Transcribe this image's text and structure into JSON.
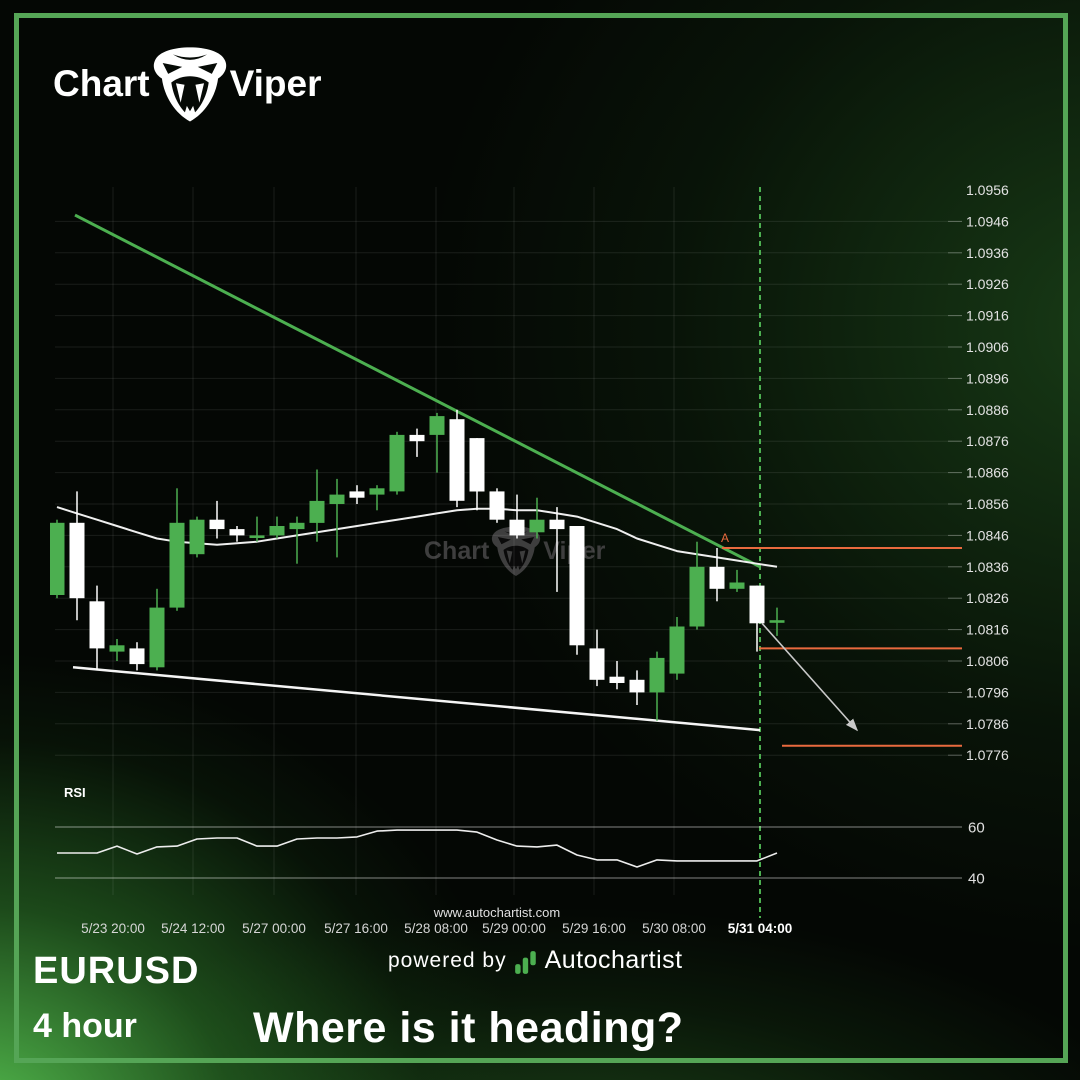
{
  "logo": {
    "left": "Chart",
    "right": "Viper"
  },
  "watermark": {
    "left": "Chart",
    "right": "Viper"
  },
  "symbol": "EURUSD",
  "timeframe": "4 hour",
  "headline": "Where is it heading?",
  "powered_by": {
    "prefix": "powered by",
    "brand": "Autochartist"
  },
  "website": "www.autochartist.com",
  "colors": {
    "accent_green": "#4caf50",
    "frame_green": "#55a556",
    "bear_white": "#ffffff",
    "level_orange": "#e96a3e",
    "arrow_gray": "#c9c9c9",
    "grid": "rgba(255,255,255,0.09)",
    "axis_text": "#e2e2e2"
  },
  "chart_data": {
    "type": "candlestick",
    "title": "EURUSD 4 hour with descending triangle breakout forecast",
    "symbol": "EURUSD",
    "interval": "4 hour",
    "grid": true,
    "price_axis": {
      "min": 1.0776,
      "max": 1.0956,
      "step": 0.001,
      "labels": [
        "1.0956",
        "1.0946",
        "1.0936",
        "1.0926",
        "1.0916",
        "1.0906",
        "1.0896",
        "1.0886",
        "1.0876",
        "1.0866",
        "1.0856",
        "1.0846",
        "1.0836",
        "1.0826",
        "1.0816",
        "1.0806",
        "1.0796",
        "1.0786",
        "1.0776"
      ]
    },
    "x_axis": {
      "labels": [
        {
          "text": "5/23 20:00",
          "index": 2.8,
          "bold": false
        },
        {
          "text": "5/24 12:00",
          "index": 6.8,
          "bold": false
        },
        {
          "text": "5/27 00:00",
          "index": 10.85,
          "bold": false
        },
        {
          "text": "5/27 16:00",
          "index": 14.95,
          "bold": false
        },
        {
          "text": "5/28 08:00",
          "index": 18.95,
          "bold": false
        },
        {
          "text": "5/29 00:00",
          "index": 22.85,
          "bold": false
        },
        {
          "text": "5/29 16:00",
          "index": 26.85,
          "bold": false
        },
        {
          "text": "5/30 08:00",
          "index": 30.85,
          "bold": false
        },
        {
          "text": "5/31 04:00",
          "index": 35.15,
          "bold": true
        }
      ]
    },
    "candles": [
      [
        1.0827,
        1.0851,
        1.0826,
        1.085
      ],
      [
        1.085,
        1.086,
        1.0819,
        1.0826
      ],
      [
        1.0825,
        1.083,
        1.0803,
        1.081
      ],
      [
        1.0809,
        1.0813,
        1.0806,
        1.0811
      ],
      [
        1.081,
        1.0812,
        1.0803,
        1.0805
      ],
      [
        1.0804,
        1.0829,
        1.0803,
        1.0823
      ],
      [
        1.0823,
        1.0861,
        1.0822,
        1.085
      ],
      [
        1.084,
        1.0852,
        1.0839,
        1.0851
      ],
      [
        1.0851,
        1.0857,
        1.0845,
        1.0848
      ],
      [
        1.0848,
        1.0849,
        1.0844,
        1.0846
      ],
      [
        1.0846,
        1.0852,
        1.0844,
        1.0846
      ],
      [
        1.0846,
        1.0852,
        1.0845,
        1.0849
      ],
      [
        1.0848,
        1.0852,
        1.0837,
        1.085
      ],
      [
        1.085,
        1.0867,
        1.0844,
        1.0857
      ],
      [
        1.0856,
        1.0864,
        1.0839,
        1.0859
      ],
      [
        1.086,
        1.0862,
        1.0856,
        1.0858
      ],
      [
        1.0859,
        1.0862,
        1.0854,
        1.0861
      ],
      [
        1.086,
        1.0879,
        1.0859,
        1.0878
      ],
      [
        1.0878,
        1.088,
        1.0871,
        1.0876
      ],
      [
        1.0878,
        1.0885,
        1.0866,
        1.0884
      ],
      [
        1.0883,
        1.0886,
        1.0855,
        1.0857
      ],
      [
        1.0877,
        1.0877,
        1.0854,
        1.086
      ],
      [
        1.086,
        1.0861,
        1.085,
        1.0851
      ],
      [
        1.0851,
        1.0859,
        1.0845,
        1.0846
      ],
      [
        1.0847,
        1.0858,
        1.0845,
        1.0851
      ],
      [
        1.0851,
        1.0855,
        1.0828,
        1.0848
      ],
      [
        1.0849,
        1.0849,
        1.0808,
        1.0811
      ],
      [
        1.081,
        1.0816,
        1.0798,
        1.08
      ],
      [
        1.0801,
        1.0806,
        1.0797,
        1.0799
      ],
      [
        1.08,
        1.0803,
        1.0792,
        1.0796
      ],
      [
        1.0796,
        1.0809,
        1.0787,
        1.0807
      ],
      [
        1.0802,
        1.082,
        1.08,
        1.0817
      ],
      [
        1.0817,
        1.0844,
        1.0816,
        1.0836
      ],
      [
        1.0836,
        1.0842,
        1.0825,
        1.0829
      ],
      [
        1.0829,
        1.0835,
        1.0828,
        1.0831
      ],
      [
        1.083,
        1.083,
        1.0809,
        1.0818
      ],
      [
        1.0819,
        1.0823,
        1.0814,
        1.0819
      ]
    ],
    "moving_average": [
      1.0855,
      1.0853,
      1.0851,
      1.0849,
      1.0847,
      1.0845,
      1.0844,
      1.08435,
      1.0843,
      1.08435,
      1.0844,
      1.0845,
      1.0846,
      1.0847,
      1.0848,
      1.0849,
      1.085,
      1.0851,
      1.0852,
      1.0853,
      1.0854,
      1.08545,
      1.08545,
      1.0854,
      1.0854,
      1.0853,
      1.0852,
      1.085,
      1.0848,
      1.0845,
      1.0843,
      1.0841,
      1.084,
      1.0839,
      1.0838,
      1.0837,
      1.0836
    ],
    "rsi": {
      "title": "RSI",
      "levels": [
        "60",
        "40"
      ],
      "values": [
        49.8,
        49.8,
        49.8,
        52.5,
        49.4,
        52.2,
        52.5,
        55.3,
        55.7,
        55.7,
        52.5,
        52.5,
        55.3,
        55.7,
        55.7,
        56.1,
        58.4,
        58.8,
        58.8,
        58.8,
        58.8,
        58.0,
        54.9,
        52.5,
        52.2,
        52.9,
        49.0,
        47.1,
        47.1,
        44.3,
        47.1,
        46.7,
        46.7,
        46.7,
        46.7,
        46.7,
        49.8
      ]
    },
    "trendlines": [
      {
        "name": "descending-resistance",
        "color": "#4caf50",
        "width": 3,
        "from": {
          "index": 0.9,
          "price": 1.0948
        },
        "to": {
          "index": 35.15,
          "price": 1.0836
        }
      },
      {
        "name": "lower-support",
        "color": "#f5f5f5",
        "width": 2.5,
        "from": {
          "index": 0.8,
          "price": 1.0804
        },
        "to": {
          "index": 35.15,
          "price": 1.0784
        }
      }
    ],
    "levels": [
      {
        "label": "A",
        "price": 1.0842,
        "from_index": 33.25
      },
      {
        "label": "",
        "price": 1.081,
        "from_index": 35.1
      },
      {
        "label": "",
        "price": 1.0779,
        "from_index": 36.25
      }
    ],
    "forecast_arrow": {
      "from": {
        "index": 35.25,
        "price": 1.0818
      },
      "to": {
        "index": 40.0,
        "price": 1.0784
      }
    },
    "forecast_divider": {
      "index": 35.15,
      "label": "5/31 04:00"
    }
  }
}
